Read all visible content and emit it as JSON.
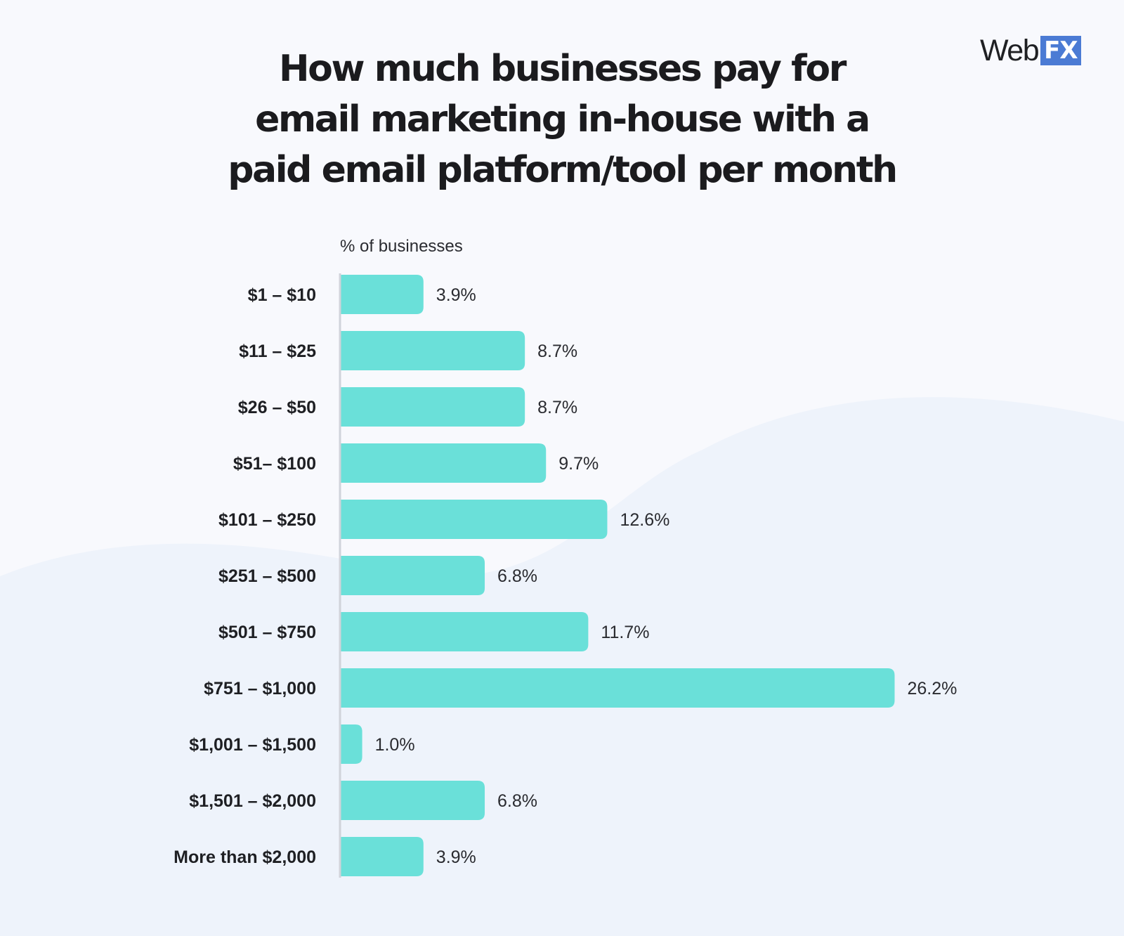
{
  "logo": {
    "text_web": "Web",
    "text_fx": "FX",
    "accent": "#4b7bd4"
  },
  "title_lines": [
    "How much businesses pay for",
    "email marketing in-house with a",
    "paid email platform/tool per month"
  ],
  "chart_data": {
    "type": "bar",
    "orientation": "horizontal",
    "title": "How much businesses pay for email marketing in-house with a paid email platform/tool per month",
    "xlabel": "% of businesses",
    "ylabel": "",
    "categories": [
      "$1 – $10",
      "$11 – $25",
      "$26 – $50",
      "$51– $100",
      "$101 – $250",
      "$251 – $500",
      "$501 – $750",
      "$751 – $1,000",
      "$1,001 – $1,500",
      "$1,501 – $2,000",
      "More than $2,000"
    ],
    "values": [
      3.9,
      8.7,
      8.7,
      9.7,
      12.6,
      6.8,
      11.7,
      26.2,
      1.0,
      6.8,
      3.9
    ],
    "value_labels": [
      "3.9%",
      "8.7%",
      "8.7%",
      "9.7%",
      "12.6%",
      "6.8%",
      "11.7%",
      "26.2%",
      "1.0%",
      "6.8%",
      "3.9%"
    ],
    "xlim": [
      0,
      26.2
    ],
    "grid": false,
    "legend": "none",
    "bar_color": "#6ae0d9",
    "axis_color": "#d0d3da"
  }
}
